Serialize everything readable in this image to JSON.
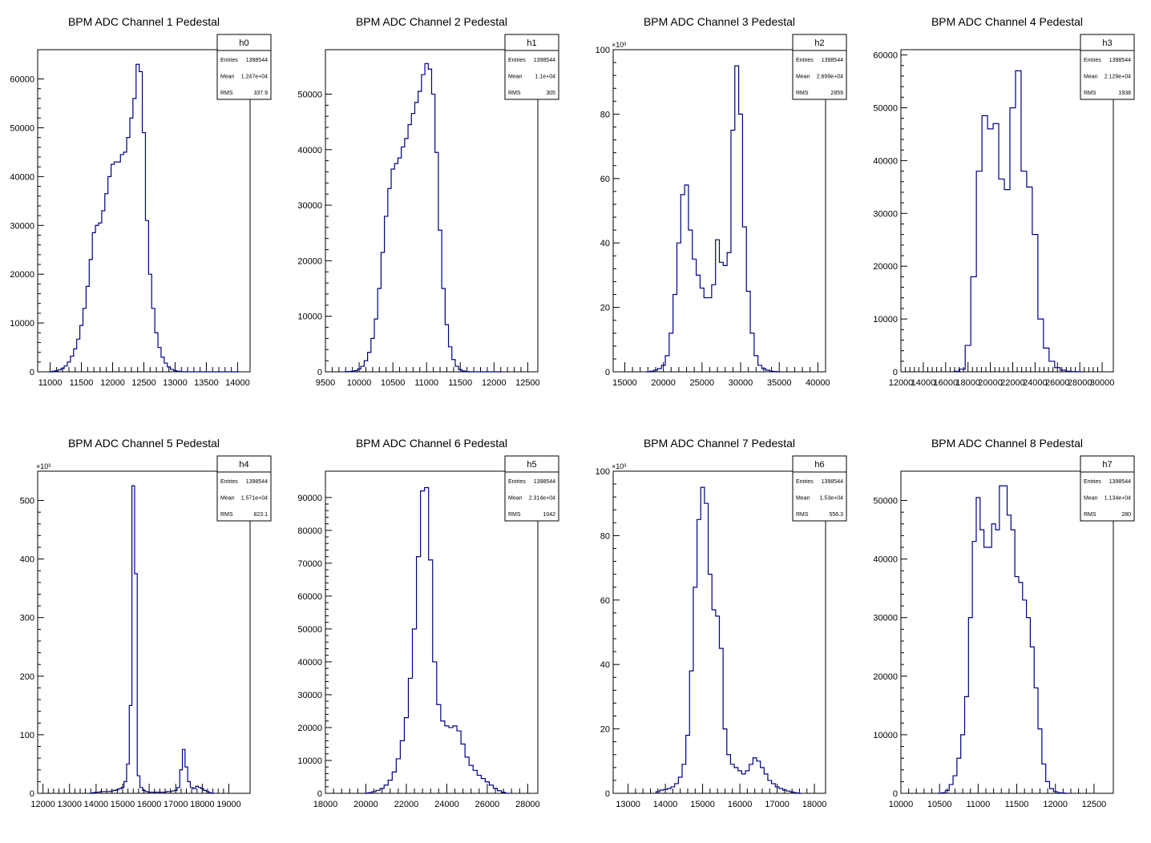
{
  "canvas_background": "#ffffff",
  "line_color": "#000080",
  "chart_data": [
    {
      "type": "histogram",
      "title": "BPM ADC Channel 1 Pedestal",
      "xlim": [
        10800,
        14200
      ],
      "ylim": [
        0,
        66000
      ],
      "exponent_label": "",
      "xticks": [
        11000,
        11500,
        12000,
        12500,
        13000,
        13500,
        14000
      ],
      "yticks": [
        0,
        10000,
        20000,
        30000,
        40000,
        50000,
        60000
      ],
      "stats": {
        "name": "h0",
        "entries": "1398544",
        "mean": "1.247e+04",
        "rms": "337.9"
      },
      "x": [
        11000,
        11050,
        11100,
        11150,
        11200,
        11250,
        11300,
        11350,
        11400,
        11450,
        11500,
        11550,
        11600,
        11650,
        11700,
        11750,
        11800,
        11850,
        11900,
        11950,
        12000,
        12050,
        12100,
        12150,
        12200,
        12250,
        12300,
        12350,
        12400,
        12450,
        12500,
        12550,
        12600,
        12650,
        12700,
        12750,
        12800,
        12850,
        12900,
        12950,
        13000,
        13050,
        13100,
        13150,
        13200,
        13250,
        13300,
        13350,
        13400,
        13450,
        13500,
        13550,
        13600,
        13650,
        13700,
        13750,
        13800,
        13850,
        13900,
        13950,
        14000
      ],
      "values": [
        0,
        100,
        200,
        400,
        700,
        1200,
        2000,
        3200,
        4700,
        6700,
        9500,
        13000,
        17500,
        23000,
        28500,
        30000,
        30500,
        33000,
        36500,
        40000,
        42500,
        43000,
        43000,
        44500,
        45000,
        48000,
        52000,
        56000,
        63000,
        61500,
        49000,
        31000,
        20000,
        13000,
        8000,
        5000,
        3000,
        1800,
        1000,
        500,
        250,
        100,
        50,
        20,
        0,
        0,
        0,
        0,
        0,
        0,
        0,
        0,
        0,
        0,
        0,
        0,
        0,
        0,
        0,
        0,
        0
      ]
    },
    {
      "type": "histogram",
      "title": "BPM ADC Channel 2 Pedestal",
      "xlim": [
        9500,
        12650
      ],
      "ylim": [
        0,
        58000
      ],
      "exponent_label": "",
      "xticks": [
        9500,
        10000,
        10500,
        11000,
        11500,
        12000,
        12500
      ],
      "yticks": [
        0,
        10000,
        20000,
        30000,
        40000,
        50000
      ],
      "stats": {
        "name": "h1",
        "entries": "1398544",
        "mean": "1.1e+04",
        "rms": "305"
      },
      "x": [
        9800,
        9850,
        9900,
        9950,
        10000,
        10050,
        10100,
        10150,
        10200,
        10250,
        10300,
        10350,
        10400,
        10450,
        10500,
        10550,
        10600,
        10650,
        10700,
        10750,
        10800,
        10850,
        10900,
        10950,
        11000,
        11050,
        11100,
        11150,
        11200,
        11250,
        11300,
        11350,
        11400,
        11450,
        11500,
        11550,
        11600,
        11650,
        11700,
        11750,
        11800,
        11850,
        11900,
        11950,
        12000,
        12050,
        12100
      ],
      "values": [
        0,
        50,
        100,
        200,
        500,
        1000,
        2000,
        3500,
        6000,
        9500,
        15000,
        21500,
        28000,
        33000,
        36500,
        37500,
        38500,
        40500,
        42000,
        44500,
        46500,
        48500,
        50500,
        53500,
        55500,
        54500,
        50000,
        39500,
        25500,
        15000,
        8500,
        4500,
        2200,
        1000,
        400,
        150,
        50,
        0,
        0,
        0,
        0,
        0,
        0,
        0,
        0,
        0,
        0
      ]
    },
    {
      "type": "histogram",
      "title": "BPM ADC Channel 3 Pedestal",
      "xlim": [
        13500,
        41000
      ],
      "ylim": [
        0,
        100
      ],
      "exponent_label": "×10³",
      "xticks": [
        15000,
        20000,
        25000,
        30000,
        35000,
        40000
      ],
      "yticks": [
        0,
        20,
        40,
        60,
        80,
        100
      ],
      "stats": {
        "name": "h2",
        "entries": "1398544",
        "mean": "2.699e+04",
        "rms": "2859"
      },
      "x": [
        18000,
        18500,
        19000,
        19500,
        20000,
        20500,
        21000,
        21500,
        22000,
        22500,
        23000,
        23500,
        24000,
        24500,
        25000,
        25500,
        26000,
        26500,
        27000,
        27500,
        28000,
        28500,
        29000,
        29500,
        30000,
        30500,
        31000,
        31500,
        32000,
        32500,
        33000,
        33500,
        34000,
        34500,
        35000
      ],
      "values": [
        0,
        0.2,
        0.5,
        1,
        2,
        5,
        12,
        24,
        40,
        55,
        58,
        44,
        35,
        30,
        26,
        23,
        23,
        27,
        41,
        34,
        33,
        37,
        75,
        95,
        80,
        45,
        25,
        12,
        5,
        2,
        1,
        0.5,
        0.2,
        0.1,
        0
      ]
    },
    {
      "type": "histogram",
      "title": "BPM ADC Channel 4 Pedestal",
      "xlim": [
        12000,
        31000
      ],
      "ylim": [
        0,
        61000
      ],
      "exponent_label": "",
      "xticks": [
        12000,
        14000,
        16000,
        18000,
        20000,
        22000,
        24000,
        26000,
        28000,
        30000
      ],
      "yticks": [
        0,
        10000,
        20000,
        30000,
        40000,
        50000,
        60000
      ],
      "stats": {
        "name": "h3",
        "entries": "1398544",
        "mean": "2.129e+04",
        "rms": "1938"
      },
      "x": [
        17000,
        17500,
        18000,
        18500,
        19000,
        19500,
        20000,
        20500,
        21000,
        21500,
        22000,
        22500,
        23000,
        23500,
        24000,
        24500,
        25000,
        25500,
        26000,
        26500,
        27000,
        27500,
        28000
      ],
      "values": [
        100,
        500,
        5000,
        18000,
        38000,
        48500,
        46000,
        47000,
        36500,
        34500,
        50000,
        57000,
        38000,
        35000,
        26000,
        10000,
        4500,
        2000,
        800,
        300,
        100,
        50,
        0
      ]
    },
    {
      "type": "histogram",
      "title": "BPM ADC Channel 5 Pedestal",
      "xlim": [
        11800,
        19800
      ],
      "ylim": [
        0,
        550
      ],
      "exponent_label": "×10³",
      "xticks": [
        12000,
        13000,
        14000,
        15000,
        16000,
        17000,
        18000,
        19000
      ],
      "yticks": [
        0,
        100,
        200,
        300,
        400,
        500
      ],
      "stats": {
        "name": "h4",
        "entries": "1398544",
        "mean": "1.571e+04",
        "rms": "823.1"
      },
      "x": [
        13800,
        13900,
        14000,
        14100,
        14200,
        14300,
        14400,
        14500,
        14600,
        14700,
        14800,
        14900,
        15000,
        15100,
        15200,
        15300,
        15400,
        15500,
        15600,
        15700,
        15800,
        15900,
        16000,
        16100,
        16200,
        16300,
        16400,
        16500,
        16600,
        16700,
        16800,
        16900,
        17000,
        17100,
        17200,
        17300,
        17400,
        17500,
        17600,
        17700,
        17800,
        17900,
        18000,
        18100,
        18200,
        18300,
        18400
      ],
      "values": [
        0,
        1,
        2,
        2,
        3,
        3,
        3,
        3,
        4,
        5,
        6,
        8,
        10,
        20,
        50,
        150,
        525,
        375,
        30,
        10,
        5,
        3,
        2,
        2,
        2,
        2,
        2,
        2,
        2,
        3,
        3,
        4,
        5,
        10,
        40,
        75,
        45,
        20,
        10,
        8,
        12,
        10,
        8,
        5,
        3,
        1,
        0
      ]
    },
    {
      "type": "histogram",
      "title": "BPM ADC Channel 6 Pedestal",
      "xlim": [
        18000,
        28500
      ],
      "ylim": [
        0,
        98000
      ],
      "exponent_label": "",
      "xticks": [
        18000,
        20000,
        22000,
        24000,
        26000,
        28000
      ],
      "yticks": [
        0,
        10000,
        20000,
        30000,
        40000,
        50000,
        60000,
        70000,
        80000,
        90000
      ],
      "stats": {
        "name": "h5",
        "entries": "1398544",
        "mean": "2.314e+04",
        "rms": "1042"
      },
      "x": [
        20000,
        20200,
        20400,
        20600,
        20800,
        21000,
        21200,
        21400,
        21600,
        21800,
        22000,
        22200,
        22400,
        22600,
        22800,
        23000,
        23200,
        23400,
        23600,
        23800,
        24000,
        24200,
        24400,
        24600,
        24800,
        25000,
        25200,
        25400,
        25600,
        25800,
        26000,
        26200,
        26400,
        26600,
        26800,
        27000
      ],
      "values": [
        0,
        200,
        500,
        900,
        1500,
        2500,
        4000,
        6500,
        10500,
        16000,
        23000,
        35000,
        50000,
        72000,
        92000,
        93000,
        71000,
        40000,
        27000,
        22000,
        20500,
        20000,
        20500,
        19000,
        15000,
        11000,
        8500,
        7000,
        5500,
        4500,
        3500,
        2500,
        1500,
        800,
        300,
        0
      ]
    },
    {
      "type": "histogram",
      "title": "BPM ADC Channel 7 Pedestal",
      "xlim": [
        12600,
        18300
      ],
      "ylim": [
        0,
        100
      ],
      "exponent_label": "×10³",
      "xticks": [
        13000,
        14000,
        15000,
        16000,
        17000,
        18000
      ],
      "yticks": [
        0,
        20,
        40,
        60,
        80,
        100
      ],
      "stats": {
        "name": "h6",
        "entries": "1398544",
        "mean": "1.53e+04",
        "rms": "556.3"
      },
      "x": [
        13800,
        13900,
        14000,
        14100,
        14200,
        14300,
        14400,
        14500,
        14600,
        14700,
        14800,
        14900,
        15000,
        15100,
        15200,
        15300,
        15400,
        15500,
        15600,
        15700,
        15800,
        15900,
        16000,
        16100,
        16200,
        16300,
        16400,
        16500,
        16600,
        16700,
        16800,
        16900,
        17000,
        17100,
        17200,
        17300,
        17400,
        17500,
        17600
      ],
      "values": [
        0.5,
        1,
        1.2,
        1.5,
        2,
        3,
        5,
        9,
        18,
        38,
        64,
        85,
        95,
        90,
        68,
        57,
        55,
        45,
        20,
        12,
        9,
        8,
        7,
        6,
        7,
        9,
        11,
        10,
        8,
        6,
        4,
        3,
        2,
        1.5,
        1,
        0.7,
        0.4,
        0.2,
        0
      ]
    },
    {
      "type": "histogram",
      "title": "BPM ADC Channel 8 Pedestal",
      "xlim": [
        10000,
        12750
      ],
      "ylim": [
        0,
        55000
      ],
      "exponent_label": "",
      "xticks": [
        10000,
        10500,
        11000,
        11500,
        12000,
        12500
      ],
      "yticks": [
        0,
        10000,
        20000,
        30000,
        40000,
        50000
      ],
      "stats": {
        "name": "h7",
        "entries": "1398544",
        "mean": "1.134e+04",
        "rms": "280"
      },
      "x": [
        10500,
        10550,
        10600,
        10650,
        10700,
        10750,
        10800,
        10850,
        10900,
        10950,
        11000,
        11050,
        11100,
        11150,
        11200,
        11250,
        11300,
        11350,
        11400,
        11450,
        11500,
        11550,
        11600,
        11650,
        11700,
        11750,
        11800,
        11850,
        11900,
        11950,
        12000,
        12050,
        12100,
        12150
      ],
      "values": [
        0,
        100,
        500,
        1500,
        3000,
        6000,
        10000,
        16500,
        30000,
        43000,
        50500,
        45000,
        42000,
        42000,
        46000,
        45000,
        52500,
        52500,
        47500,
        45000,
        37000,
        36000,
        33000,
        30000,
        25000,
        18000,
        11000,
        5000,
        2000,
        800,
        300,
        100,
        50,
        0
      ]
    }
  ]
}
